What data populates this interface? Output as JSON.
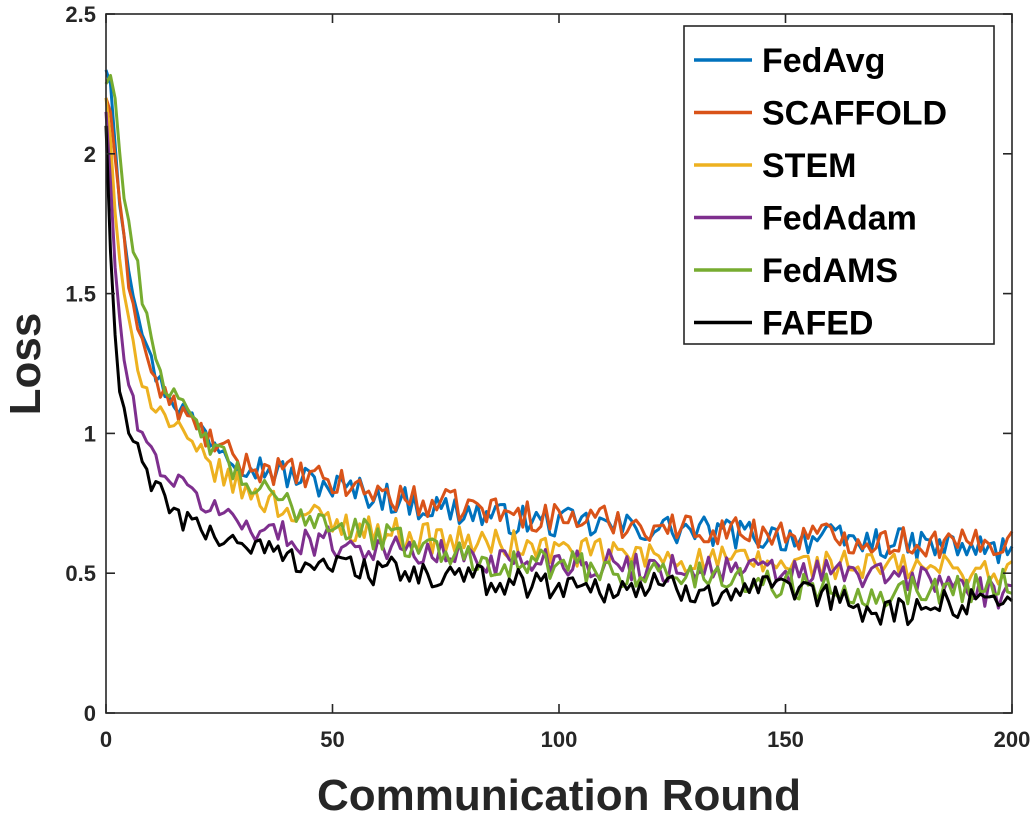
{
  "chart_data": {
    "type": "line",
    "title": "",
    "xlabel": "Communication Round",
    "ylabel": "Loss",
    "xlim": [
      0,
      200
    ],
    "ylim": [
      0,
      2.5
    ],
    "xticks": [
      0,
      50,
      100,
      150,
      200
    ],
    "xtick_labels": [
      "0",
      "50",
      "100",
      "150",
      "200"
    ],
    "yticks": [
      0,
      0.5,
      1,
      1.5,
      2,
      2.5
    ],
    "ytick_labels": [
      "0",
      "0.5",
      "1",
      "1.5",
      "2",
      "2.5"
    ],
    "grid": false,
    "legend_position": "top-right",
    "x": [
      0,
      1,
      2,
      3,
      5,
      8,
      10,
      12,
      15,
      20,
      25,
      30,
      40,
      50,
      60,
      70,
      80,
      90,
      100,
      110,
      120,
      130,
      140,
      150,
      160,
      170,
      180,
      190,
      200
    ],
    "series": [
      {
        "name": "FedAvg",
        "color": "#0072BD",
        "values": [
          2.3,
          2.25,
          2.05,
          1.85,
          1.6,
          1.38,
          1.25,
          1.18,
          1.12,
          1.03,
          0.96,
          0.9,
          0.85,
          0.81,
          0.78,
          0.74,
          0.72,
          0.69,
          0.68,
          0.67,
          0.66,
          0.65,
          0.64,
          0.63,
          0.62,
          0.61,
          0.6,
          0.59,
          0.58
        ]
      },
      {
        "name": "SCAFFOLD",
        "color": "#D95319",
        "values": [
          2.2,
          2.15,
          2.0,
          1.8,
          1.55,
          1.33,
          1.22,
          1.15,
          1.1,
          1.02,
          0.95,
          0.89,
          0.86,
          0.82,
          0.79,
          0.75,
          0.74,
          0.71,
          0.7,
          0.69,
          0.67,
          0.66,
          0.65,
          0.64,
          0.63,
          0.62,
          0.61,
          0.6,
          0.62
        ]
      },
      {
        "name": "STEM",
        "color": "#EDB120",
        "values": [
          2.2,
          2.05,
          1.8,
          1.6,
          1.38,
          1.2,
          1.12,
          1.08,
          1.02,
          0.93,
          0.86,
          0.8,
          0.73,
          0.68,
          0.65,
          0.63,
          0.61,
          0.6,
          0.58,
          0.57,
          0.56,
          0.55,
          0.54,
          0.53,
          0.53,
          0.52,
          0.52,
          0.51,
          0.5
        ]
      },
      {
        "name": "FedAdam",
        "color": "#7E2F8E",
        "values": [
          2.15,
          1.9,
          1.6,
          1.4,
          1.15,
          1.0,
          0.93,
          0.88,
          0.83,
          0.77,
          0.72,
          0.68,
          0.63,
          0.61,
          0.59,
          0.57,
          0.56,
          0.54,
          0.55,
          0.53,
          0.52,
          0.52,
          0.51,
          0.5,
          0.5,
          0.49,
          0.48,
          0.45,
          0.4
        ]
      },
      {
        "name": "FedAMS",
        "color": "#77AC30",
        "values": [
          2.25,
          2.28,
          2.2,
          2.0,
          1.75,
          1.5,
          1.35,
          1.22,
          1.12,
          1.02,
          0.93,
          0.83,
          0.74,
          0.68,
          0.63,
          0.6,
          0.56,
          0.53,
          0.53,
          0.51,
          0.5,
          0.49,
          0.48,
          0.46,
          0.45,
          0.43,
          0.44,
          0.45,
          0.47
        ]
      },
      {
        "name": "FAFED",
        "color": "#000000",
        "values": [
          2.1,
          1.65,
          1.35,
          1.15,
          1.0,
          0.9,
          0.83,
          0.78,
          0.72,
          0.66,
          0.63,
          0.61,
          0.56,
          0.53,
          0.51,
          0.49,
          0.48,
          0.47,
          0.46,
          0.45,
          0.45,
          0.44,
          0.44,
          0.43,
          0.41,
          0.36,
          0.37,
          0.4,
          0.43
        ]
      }
    ]
  }
}
